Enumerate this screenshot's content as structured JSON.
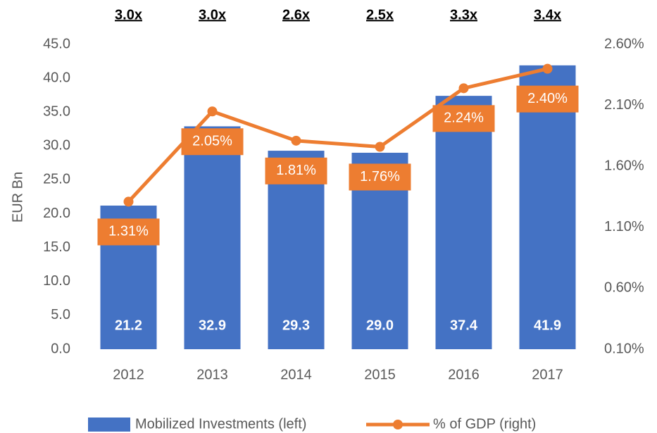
{
  "chart_data": {
    "type": "bar",
    "ylabel": "EUR Bn",
    "categories": [
      "2012",
      "2013",
      "2014",
      "2015",
      "2016",
      "2017"
    ],
    "annotations": [
      "3.0x",
      "3.0x",
      "2.6x",
      "2.5x",
      "3.3x",
      "3.4x"
    ],
    "series": [
      {
        "name": "Mobilized Investments (left)",
        "type": "bar",
        "color": "#4472c4",
        "values": [
          21.2,
          32.9,
          29.3,
          29.0,
          37.4,
          41.9
        ],
        "value_labels": [
          "21.2",
          "32.9",
          "29.3",
          "29.0",
          "37.4",
          "41.9"
        ]
      },
      {
        "name": "% of GDP (right)",
        "type": "line",
        "axis": "y2",
        "color": "#ed7d31",
        "values": [
          1.31,
          2.05,
          1.81,
          1.76,
          2.24,
          2.4
        ],
        "value_labels": [
          "1.31%",
          "2.05%",
          "1.81%",
          "1.76%",
          "2.24%",
          "2.40%"
        ]
      }
    ],
    "ylim": [
      0,
      45
    ],
    "yticks": [
      {
        "value": 0,
        "label": "0.0"
      },
      {
        "value": 5,
        "label": "5.0"
      },
      {
        "value": 10,
        "label": "10.0"
      },
      {
        "value": 15,
        "label": "15.0"
      },
      {
        "value": 20,
        "label": "20.0"
      },
      {
        "value": 25,
        "label": "25.0"
      },
      {
        "value": 30,
        "label": "30.0"
      },
      {
        "value": 35,
        "label": "35.0"
      },
      {
        "value": 40,
        "label": "40.0"
      },
      {
        "value": 45,
        "label": "45.0"
      }
    ],
    "y2lim": [
      0.1,
      2.6
    ],
    "y2ticks": [
      {
        "value": 0.1,
        "label": "0.10%"
      },
      {
        "value": 0.6,
        "label": "0.60%"
      },
      {
        "value": 1.1,
        "label": "1.10%"
      },
      {
        "value": 1.6,
        "label": "1.60%"
      },
      {
        "value": 2.1,
        "label": "2.10%"
      },
      {
        "value": 2.6,
        "label": "2.60%"
      }
    ],
    "grid": false,
    "legend": "bottom"
  }
}
